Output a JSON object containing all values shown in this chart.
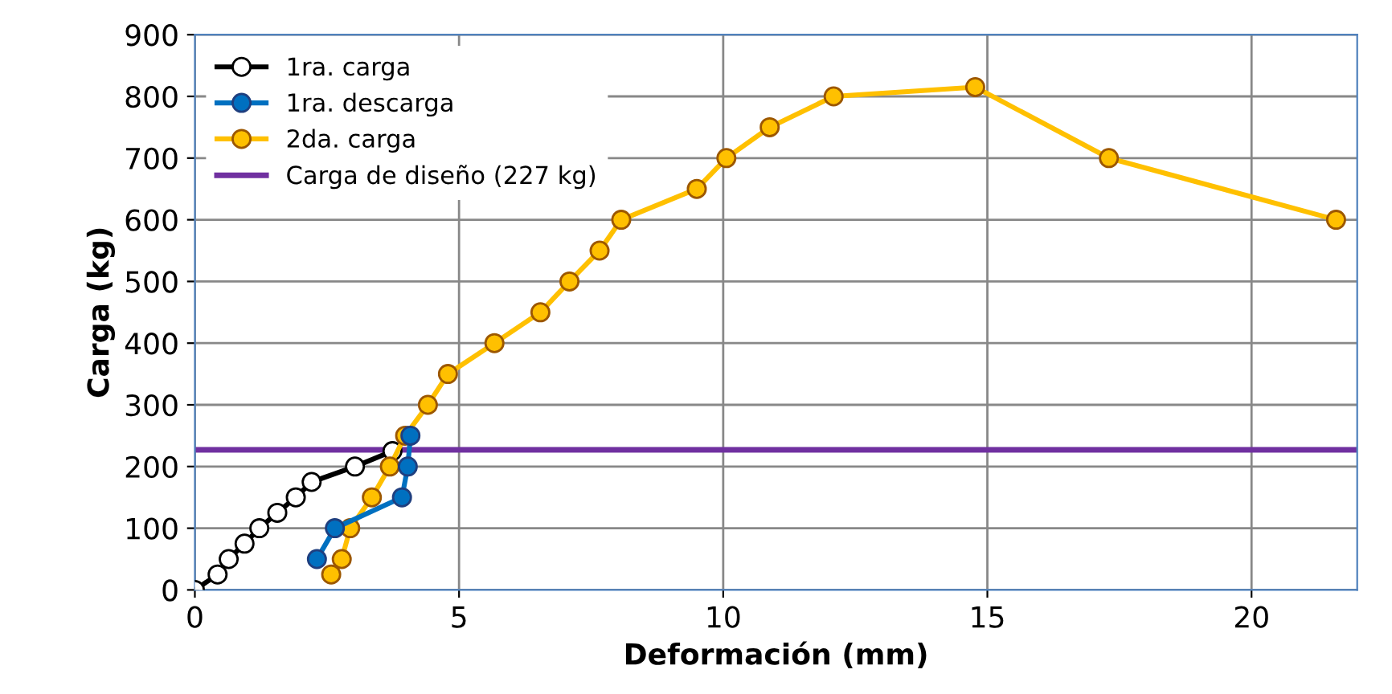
{
  "chart_data": {
    "type": "line",
    "xlabel": "Deformación (mm)",
    "ylabel": "Carga (kg)",
    "xlim": [
      0,
      22
    ],
    "xticks": [
      0,
      5,
      10,
      15,
      20
    ],
    "ylim": [
      0,
      900
    ],
    "yticks": [
      0,
      100,
      200,
      300,
      400,
      500,
      600,
      700,
      800,
      900
    ],
    "grid": true,
    "legend": "upper left",
    "marker": "circle",
    "line_style": "solid",
    "series": [
      {
        "name": "1ra. carga",
        "color": "#000000",
        "x": [
          0,
          0.43,
          0.64,
          0.94,
          1.22,
          1.56,
          1.91,
          2.21,
          3.03,
          3.74
        ],
        "values": [
          0,
          25,
          50,
          75,
          100,
          125,
          150,
          175,
          200,
          225
        ]
      },
      {
        "name": "1ra. descarga",
        "color": "#0070c0",
        "x": [
          4.08,
          4.03,
          3.92,
          2.65,
          2.31
        ],
        "values": [
          250,
          200,
          150,
          100,
          50
        ]
      },
      {
        "name": "2da. carga",
        "color": "#ffc000",
        "x": [
          2.58,
          2.78,
          2.94,
          3.35,
          3.69,
          3.98,
          4.41,
          4.79,
          5.67,
          6.54,
          7.09,
          7.66,
          8.07,
          9.5,
          10.06,
          10.88,
          12.09,
          14.77,
          17.3,
          21.6
        ],
        "values": [
          25,
          50,
          100,
          150,
          200,
          250,
          300,
          350,
          400,
          450,
          500,
          550,
          600,
          650,
          700,
          750,
          800,
          815,
          700,
          600
        ]
      }
    ],
    "ref_lines": [
      {
        "axis": "y",
        "value": 227,
        "label": "Carga de diseño (227 kg)",
        "color": "#7030a0"
      }
    ]
  }
}
